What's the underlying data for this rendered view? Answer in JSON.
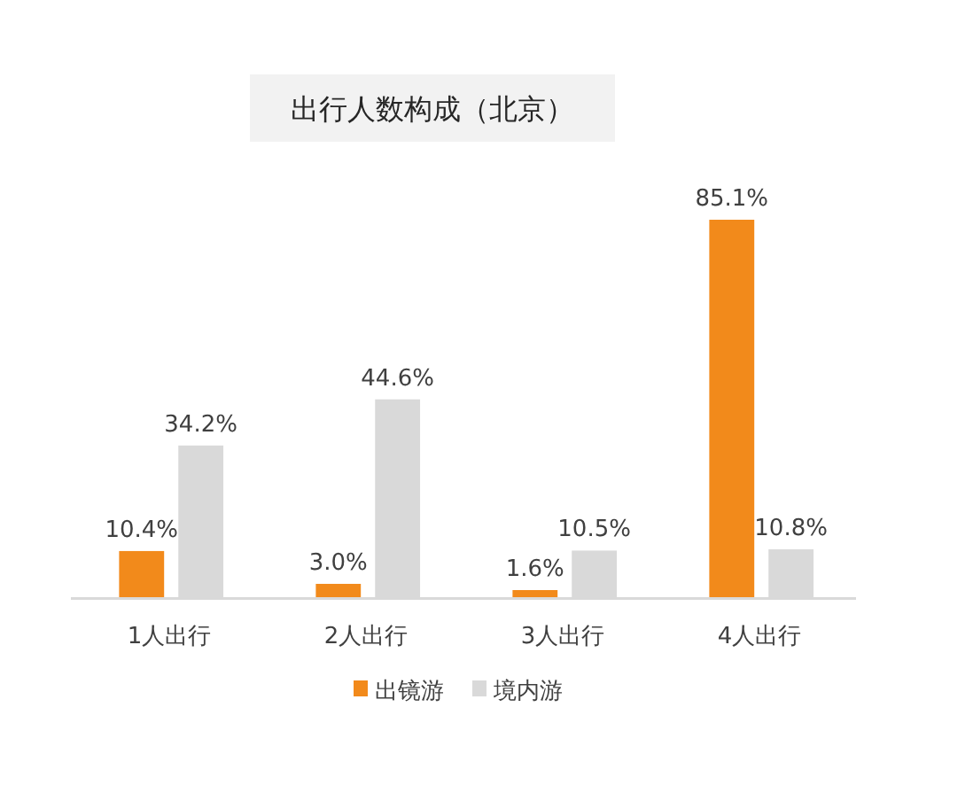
{
  "chart_data": {
    "type": "bar",
    "title": "出行人数构成（北京）",
    "categories": [
      "1人出行",
      "2人出行",
      "3人出行",
      "4人出行"
    ],
    "series": [
      {
        "name": "出镜游",
        "color": "#f28a1b",
        "values": [
          10.4,
          3.0,
          1.6,
          85.1
        ],
        "value_labels": [
          "10.4%",
          "3.0%",
          "1.6%",
          "85.1%"
        ]
      },
      {
        "name": "境内游",
        "color": "#d9d9d9",
        "values": [
          34.2,
          44.6,
          10.5,
          10.8
        ],
        "value_labels": [
          "34.2%",
          "44.6%",
          "10.5%",
          "10.8%"
        ]
      }
    ],
    "legend": "bottom"
  }
}
